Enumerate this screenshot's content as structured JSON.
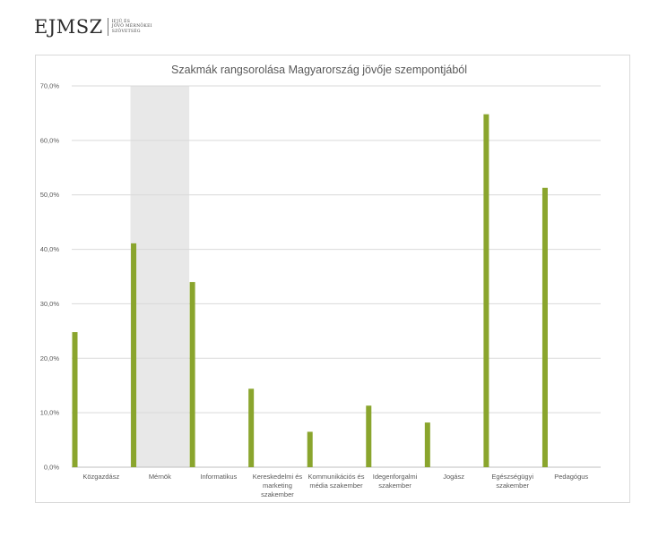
{
  "logo": {
    "mark": "EJMSZ",
    "tagline": [
      "IFJÚ ÉS",
      "JÖVŐ MÉRNÖKEI",
      "SZÖVETSÉG"
    ]
  },
  "chart_data": {
    "type": "bar",
    "title": "Szakmák rangsorolása Magyarország jövője szempontjából",
    "xlabel": "",
    "ylabel": "",
    "ylim": [
      0,
      70
    ],
    "yticks": [
      "0,0%",
      "10,0%",
      "20,0%",
      "30,0%",
      "40,0%",
      "50,0%",
      "60,0%",
      "70,0%"
    ],
    "categories": [
      [
        "Közgazdász"
      ],
      [
        "Mérnök"
      ],
      [
        "Informatikus"
      ],
      [
        "Kereskedelmi és",
        "marketing",
        "szakember"
      ],
      [
        "Kommunikációs és",
        "média szakember"
      ],
      [
        "Idegenforgalmi",
        "szakember"
      ],
      [
        "Jogász"
      ],
      [
        "Egészségügyi",
        "szakember"
      ],
      [
        "Pedagógus"
      ]
    ],
    "values": [
      24.8,
      41.1,
      34.0,
      14.4,
      6.5,
      11.3,
      8.2,
      64.8,
      51.3
    ],
    "highlight_index": 1,
    "grid": true,
    "legend": "none",
    "colors": {
      "bar": "#8aa52d",
      "highlight": "#e8e8e8",
      "grid": "#d9d9d9",
      "axis": "#bfbfbf"
    }
  }
}
